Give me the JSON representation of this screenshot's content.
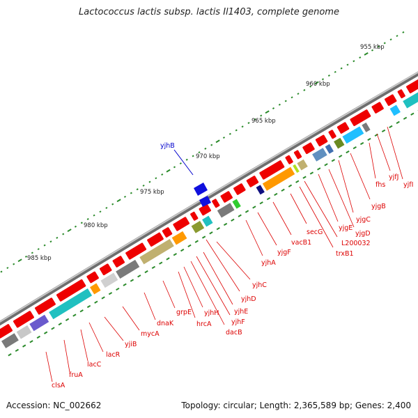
{
  "title": "Lactococcus lactis subsp. lactis Il1403, complete genome",
  "footer": {
    "accession": "Accession: NC_002662",
    "summary": "Topology: circular; Length: 2,365,589 bp; Genes: 2,400"
  },
  "colors": {
    "backbone": "#8a8a8a",
    "forward_gene": "#ee0000",
    "label_red": "#dd0000",
    "label_blue": "#0000cc",
    "tick": "#2a8a2a"
  },
  "scale_labels": [
    "955 kbp",
    "960 kbp",
    "965 kbp",
    "970 kbp",
    "975 kbp",
    "980 kbp",
    "985 kbp"
  ],
  "gene_labels": [
    "clsA",
    "fruA",
    "lacC",
    "lacR",
    "yjiB",
    "mycA",
    "dnaK",
    "grpE",
    "hrcA",
    "yjhH",
    "dacB",
    "yjhF",
    "yjhE",
    "yjhD",
    "yjhC",
    "yjhA",
    "yjgF",
    "vacB1",
    "secG",
    "L200032",
    "trxB1",
    "yjgE",
    "yjgD",
    "yjgC",
    "yjgB",
    "fhs",
    "yjfJ",
    "yjfI",
    "yjhB"
  ]
}
